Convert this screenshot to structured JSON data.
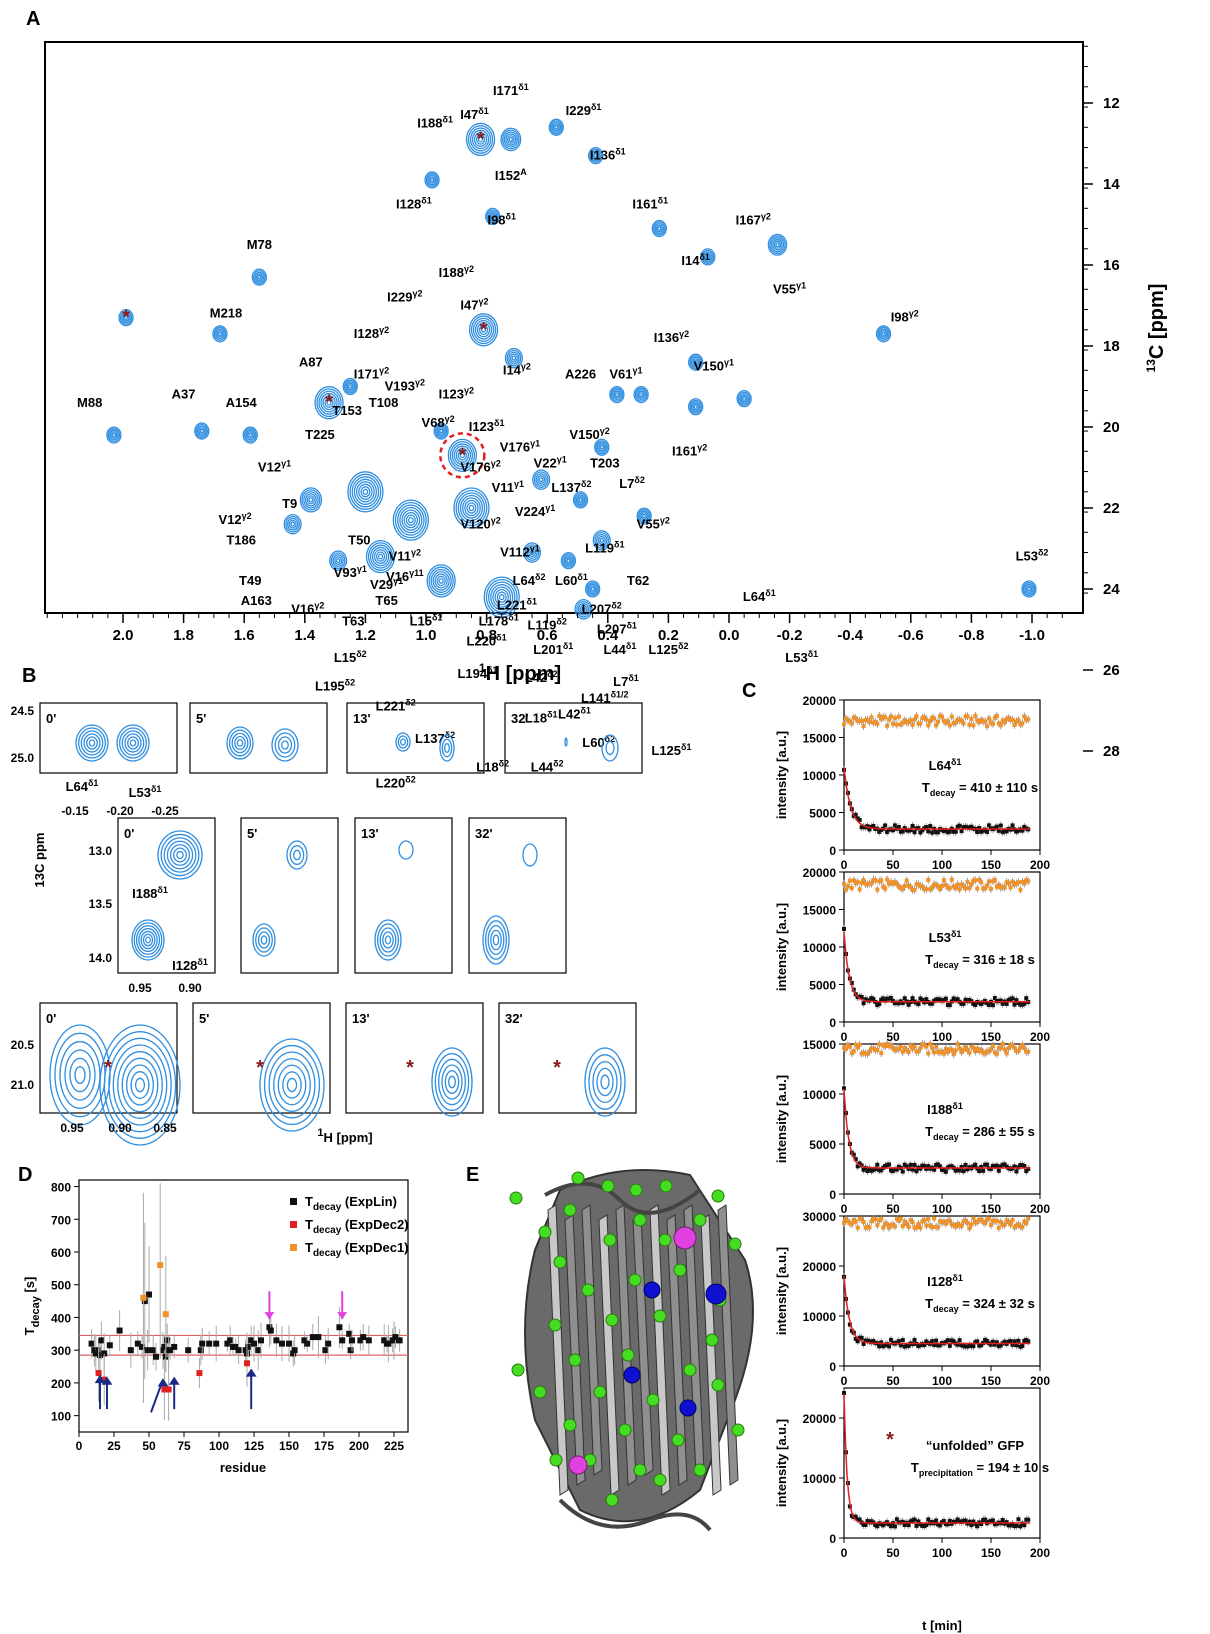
{
  "panels": {
    "a": "A",
    "b": "B",
    "c": "C",
    "d": "D",
    "e": "E"
  },
  "colors": {
    "contour": "#2f8ee0",
    "star": "#8b1a1a",
    "orange": "#f0922b",
    "red_fit": "#e02020",
    "black": "#111111",
    "magenta": "#e040e0",
    "navy": "#1a2a8a",
    "green": "#44dd22",
    "protein": "#555555"
  },
  "panelA": {
    "xlabel_pre": "1",
    "xlabel_main": "H [ppm]",
    "ylabel_pre": "13",
    "ylabel_main": "C [ppm]",
    "xticks": [
      "2.0",
      "1.8",
      "1.6",
      "1.4",
      "1.2",
      "1.0",
      "0.8",
      "0.6",
      "0.4",
      "0.2",
      "0.0",
      "-0.2",
      "-0.4",
      "-0.6",
      "-0.8",
      "-1.0"
    ],
    "yticks": [
      "12",
      "14",
      "16",
      "18",
      "20",
      "22",
      "24",
      "26",
      "28"
    ],
    "peaks": [
      {
        "x": 1.99,
        "y": 17.3,
        "s": 1,
        "star": true
      },
      {
        "x": 1.55,
        "y": 16.3,
        "s": 1
      },
      {
        "x": 1.68,
        "y": 17.7,
        "s": 1
      },
      {
        "x": 2.03,
        "y": 20.2,
        "s": 1
      },
      {
        "x": 1.74,
        "y": 20.1,
        "s": 1
      },
      {
        "x": 1.58,
        "y": 20.2,
        "s": 1
      },
      {
        "x": 1.32,
        "y": 19.4,
        "s": 2,
        "star": true
      },
      {
        "x": 1.25,
        "y": 19.0,
        "s": 1
      },
      {
        "x": 0.98,
        "y": 13.9,
        "s": 1
      },
      {
        "x": 0.82,
        "y": 12.9,
        "s": 2,
        "star": true
      },
      {
        "x": 0.72,
        "y": 12.9,
        "s": 1.4
      },
      {
        "x": 0.57,
        "y": 12.6,
        "s": 1
      },
      {
        "x": 0.44,
        "y": 13.3,
        "s": 1
      },
      {
        "x": 0.78,
        "y": 14.8,
        "s": 1
      },
      {
        "x": 0.23,
        "y": 15.1,
        "s": 1
      },
      {
        "x": 0.07,
        "y": 15.8,
        "s": 1
      },
      {
        "x": -0.16,
        "y": 15.5,
        "s": 1.3
      },
      {
        "x": -0.51,
        "y": 17.7,
        "s": 1
      },
      {
        "x": 0.81,
        "y": 17.6,
        "s": 2,
        "star": true
      },
      {
        "x": 0.71,
        "y": 18.3,
        "s": 1.2
      },
      {
        "x": 0.37,
        "y": 19.2,
        "s": 1
      },
      {
        "x": 0.29,
        "y": 19.2,
        "s": 1
      },
      {
        "x": 0.11,
        "y": 18.4,
        "s": 1
      },
      {
        "x": 0.11,
        "y": 19.5,
        "s": 1
      },
      {
        "x": -0.05,
        "y": 19.3,
        "s": 1
      },
      {
        "x": 0.42,
        "y": 20.5,
        "s": 1
      },
      {
        "x": 0.88,
        "y": 20.7,
        "s": 2,
        "star": true
      },
      {
        "x": 0.95,
        "y": 20.1,
        "s": 1
      },
      {
        "x": 0.62,
        "y": 21.3,
        "s": 1.2
      },
      {
        "x": 0.49,
        "y": 21.8,
        "s": 1
      },
      {
        "x": 0.28,
        "y": 22.2,
        "s": 1
      },
      {
        "x": 0.42,
        "y": 22.8,
        "s": 1.2
      },
      {
        "x": 0.65,
        "y": 23.1,
        "s": 1.2
      },
      {
        "x": 0.53,
        "y": 23.3,
        "s": 1
      },
      {
        "x": 0.45,
        "y": 24.0,
        "s": 1
      },
      {
        "x": 0.48,
        "y": 24.5,
        "s": 1.2
      },
      {
        "x": 0.23,
        "y": 25.0,
        "s": 1
      },
      {
        "x": -0.17,
        "y": 24.9,
        "s": 1.3
      },
      {
        "x": -0.99,
        "y": 24.0,
        "s": 1
      },
      {
        "x": 0.49,
        "y": 25.9,
        "s": 1.4
      },
      {
        "x": 0.54,
        "y": 26.7,
        "s": 1.2
      },
      {
        "x": 0.23,
        "y": 27.6,
        "s": 1
      },
      {
        "x": 0.69,
        "y": 27.9,
        "s": 1.2
      },
      {
        "x": 0.93,
        "y": 28.3,
        "s": 1
      },
      {
        "x": 0.97,
        "y": 25.8,
        "s": 1.2
      },
      {
        "x": 0.78,
        "y": 26.0,
        "s": 1.3
      },
      {
        "x": 1.09,
        "y": 25.8,
        "s": 1
      },
      {
        "x": 1.2,
        "y": 21.6,
        "s": 2.5
      },
      {
        "x": 1.05,
        "y": 22.3,
        "s": 2.5
      },
      {
        "x": 0.85,
        "y": 22.0,
        "s": 2.5
      },
      {
        "x": 1.15,
        "y": 23.2,
        "s": 2
      },
      {
        "x": 0.95,
        "y": 23.8,
        "s": 2
      },
      {
        "x": 0.75,
        "y": 24.2,
        "s": 2.5
      },
      {
        "x": 1.38,
        "y": 21.8,
        "s": 1.5
      },
      {
        "x": 1.44,
        "y": 22.4,
        "s": 1.2
      },
      {
        "x": 1.29,
        "y": 23.3,
        "s": 1.2
      },
      {
        "x": 0.98,
        "y": 24.8,
        "s": 2
      },
      {
        "x": 0.6,
        "y": 25.1,
        "s": 2
      },
      {
        "x": 1.35,
        "y": 25.1,
        "s": 1.6
      },
      {
        "x": 1.55,
        "y": 26.5,
        "s": 2
      },
      {
        "x": 1.9,
        "y": 27.8,
        "s": 1.3
      },
      {
        "x": 1.6,
        "y": 28.7,
        "s": 2
      },
      {
        "x": 2.1,
        "y": 28.7,
        "s": 1
      }
    ],
    "labels": [
      {
        "t": "I188δ1",
        "x": 0.97,
        "y": 12.6
      },
      {
        "t": "I47δ1",
        "x": 0.84,
        "y": 12.4
      },
      {
        "t": "I171δ1",
        "x": 0.72,
        "y": 11.8
      },
      {
        "t": "I229δ1",
        "x": 0.48,
        "y": 12.3
      },
      {
        "t": "I136δ1",
        "x": 0.4,
        "y": 13.4
      },
      {
        "t": "I152A",
        "x": 0.72,
        "y": 13.9
      },
      {
        "t": "I128δ1",
        "x": 1.04,
        "y": 14.6
      },
      {
        "t": "I98δ1",
        "x": 0.75,
        "y": 15.0
      },
      {
        "t": "I161δ1",
        "x": 0.26,
        "y": 14.6
      },
      {
        "t": "I14δ1",
        "x": 0.11,
        "y": 16.0
      },
      {
        "t": "I167γ2",
        "x": -0.08,
        "y": 15.0
      },
      {
        "t": "V55γ1",
        "x": -0.2,
        "y": 16.7
      },
      {
        "t": "M78",
        "x": 1.55,
        "y": 15.6
      },
      {
        "t": "M218",
        "x": 1.66,
        "y": 17.3
      },
      {
        "t": "I98γ2",
        "x": -0.58,
        "y": 17.4
      },
      {
        "t": "I229γ2",
        "x": 1.07,
        "y": 16.9
      },
      {
        "t": "I188γ2",
        "x": 0.9,
        "y": 16.3
      },
      {
        "t": "I47γ2",
        "x": 0.84,
        "y": 17.1
      },
      {
        "t": "I128γ2",
        "x": 1.18,
        "y": 17.8
      },
      {
        "t": "I136γ2",
        "x": 0.19,
        "y": 17.9
      },
      {
        "t": "V150γ1",
        "x": 0.05,
        "y": 18.6
      },
      {
        "t": "A87",
        "x": 1.38,
        "y": 18.5
      },
      {
        "t": "I14γ2",
        "x": 0.7,
        "y": 18.7
      },
      {
        "t": "I171γ2",
        "x": 1.18,
        "y": 18.8
      },
      {
        "t": "V193γ2",
        "x": 1.07,
        "y": 19.1
      },
      {
        "t": "I123γ2",
        "x": 0.9,
        "y": 19.3
      },
      {
        "t": "A226",
        "x": 0.49,
        "y": 18.8
      },
      {
        "t": "V61γ1",
        "x": 0.34,
        "y": 18.8
      },
      {
        "t": "M88",
        "x": 2.11,
        "y": 19.5
      },
      {
        "t": "A37",
        "x": 1.8,
        "y": 19.3
      },
      {
        "t": "A154",
        "x": 1.61,
        "y": 19.5
      },
      {
        "t": "T153",
        "x": 1.26,
        "y": 19.7
      },
      {
        "t": "T108",
        "x": 1.14,
        "y": 19.5
      },
      {
        "t": "V68γ2",
        "x": 0.96,
        "y": 20.0
      },
      {
        "t": "I123δ1",
        "x": 0.8,
        "y": 20.1
      },
      {
        "t": "I161γ2",
        "x": 0.13,
        "y": 20.7
      },
      {
        "t": "T225",
        "x": 1.35,
        "y": 20.3
      },
      {
        "t": "V150γ2",
        "x": 0.46,
        "y": 20.3
      },
      {
        "t": "V176γ1",
        "x": 0.69,
        "y": 20.6
      },
      {
        "t": "V176γ2",
        "x": 0.82,
        "y": 21.1
      },
      {
        "t": "V22γ1",
        "x": 0.59,
        "y": 21.0
      },
      {
        "t": "T203",
        "x": 0.41,
        "y": 21.0
      },
      {
        "t": "V12γ1",
        "x": 1.5,
        "y": 21.1
      },
      {
        "t": "V11γ1",
        "x": 0.73,
        "y": 21.6
      },
      {
        "t": "L137δ2",
        "x": 0.52,
        "y": 21.6
      },
      {
        "t": "L7δ2",
        "x": 0.32,
        "y": 21.5
      },
      {
        "t": "T9",
        "x": 1.45,
        "y": 22.0
      },
      {
        "t": "V224γ1",
        "x": 0.64,
        "y": 22.2
      },
      {
        "t": "V120γ2",
        "x": 0.82,
        "y": 22.5
      },
      {
        "t": "V12γ2",
        "x": 1.63,
        "y": 22.4
      },
      {
        "t": "V55γ2",
        "x": 0.25,
        "y": 22.5
      },
      {
        "t": "T186",
        "x": 1.61,
        "y": 22.9
      },
      {
        "t": "T50",
        "x": 1.22,
        "y": 22.9
      },
      {
        "t": "V112γ1",
        "x": 0.69,
        "y": 23.2
      },
      {
        "t": "L119δ1",
        "x": 0.41,
        "y": 23.1
      },
      {
        "t": "V11γ2",
        "x": 1.07,
        "y": 23.3
      },
      {
        "t": "V16γ11",
        "x": 1.07,
        "y": 23.8
      },
      {
        "t": "V93γ1",
        "x": 1.25,
        "y": 23.7
      },
      {
        "t": "L64δ2",
        "x": 0.66,
        "y": 23.9
      },
      {
        "t": "L60δ1",
        "x": 0.52,
        "y": 23.9
      },
      {
        "t": "T62",
        "x": 0.3,
        "y": 23.9
      },
      {
        "t": "T49",
        "x": 1.58,
        "y": 23.9
      },
      {
        "t": "V29γ1",
        "x": 1.13,
        "y": 24.0
      },
      {
        "t": "L221δ1",
        "x": 0.7,
        "y": 24.5
      },
      {
        "t": "L207δ2",
        "x": 0.42,
        "y": 24.6
      },
      {
        "t": "A163",
        "x": 1.56,
        "y": 24.4
      },
      {
        "t": "V16γ2",
        "x": 1.39,
        "y": 24.6
      },
      {
        "t": "T65",
        "x": 1.13,
        "y": 24.4
      },
      {
        "t": "L178δ1",
        "x": 0.76,
        "y": 24.9
      },
      {
        "t": "L64δ1",
        "x": -0.1,
        "y": 24.3
      },
      {
        "t": "T63",
        "x": 1.24,
        "y": 24.9
      },
      {
        "t": "L15δ1",
        "x": 1.0,
        "y": 24.9
      },
      {
        "t": "L119δ2",
        "x": 0.6,
        "y": 25.0
      },
      {
        "t": "L207δ1",
        "x": 0.37,
        "y": 25.1
      },
      {
        "t": "L220δ1",
        "x": 0.8,
        "y": 25.4
      },
      {
        "t": "L201δ1",
        "x": 0.58,
        "y": 25.6
      },
      {
        "t": "L44δ1",
        "x": 0.36,
        "y": 25.6
      },
      {
        "t": "L125δ2",
        "x": 0.2,
        "y": 25.6
      },
      {
        "t": "L53δ1",
        "x": -0.24,
        "y": 25.8
      },
      {
        "t": "L15δ2",
        "x": 1.25,
        "y": 25.8
      },
      {
        "t": "L194δ1",
        "x": 0.83,
        "y": 26.2
      },
      {
        "t": "L42δ2",
        "x": 0.62,
        "y": 26.3
      },
      {
        "t": "L7δ1",
        "x": 0.34,
        "y": 26.4
      },
      {
        "t": "L195δ2",
        "x": 1.3,
        "y": 26.5
      },
      {
        "t": "L141δ1/2",
        "x": 0.41,
        "y": 26.8
      },
      {
        "t": "L221δ2",
        "x": 1.1,
        "y": 27.0
      },
      {
        "t": "L18δ1",
        "x": 0.62,
        "y": 27.3
      },
      {
        "t": "L42δ1",
        "x": 0.51,
        "y": 27.2
      },
      {
        "t": "L137δ2",
        "x": 0.97,
        "y": 27.8
      },
      {
        "t": "L60δ2",
        "x": 0.43,
        "y": 27.9
      },
      {
        "t": "L125δ1",
        "x": 0.19,
        "y": 28.1
      },
      {
        "t": "L18δ2",
        "x": 0.78,
        "y": 28.5
      },
      {
        "t": "L44δ2",
        "x": 0.6,
        "y": 28.5
      },
      {
        "t": "L220δ2",
        "x": 1.1,
        "y": 28.9
      },
      {
        "t": "L53δ2",
        "x": -1.0,
        "y": 23.3
      }
    ]
  },
  "panelB": {
    "ylabel": "13C ppm",
    "xlabel_pre": "1",
    "xlabel_main": "H [ppm]",
    "row1": {
      "times": [
        "0'",
        "5'",
        "13'",
        "32'"
      ],
      "yticks": [
        "24.5",
        "25.0"
      ],
      "xticks": [
        "-0.15",
        "-0.20",
        "-0.25"
      ],
      "lab1": "L64δ1",
      "lab2": "L53δ1"
    },
    "row2": {
      "times": [
        "0'",
        "5'",
        "13'",
        "32'"
      ],
      "yticks": [
        "13.0",
        "13.5",
        "14.0"
      ],
      "xticks": [
        "0.95",
        "0.90"
      ],
      "lab1": "I188δ1",
      "lab2": "I128δ1"
    },
    "row3": {
      "times": [
        "0'",
        "5'",
        "13'",
        "32'"
      ],
      "yticks": [
        "20.5",
        "21.0"
      ],
      "xticks": [
        "0.95",
        "0.90",
        "0.85"
      ]
    }
  },
  "panelC": {
    "ylabel": "intensity [a.u.]",
    "xlabel": "t [min]",
    "xticks": [
      "0",
      "50",
      "100",
      "150",
      "200"
    ],
    "plots": [
      {
        "name": "L64δ1",
        "t": "Tdecay = 410 ± 110 s",
        "yticks": [
          "0",
          "5000",
          "10000",
          "15000",
          "20000"
        ],
        "ymax": 20000,
        "flat": 17200,
        "start": 11000,
        "end": 2800,
        "tau": 6.8,
        "ts": "decay"
      },
      {
        "name": "L53δ1",
        "t": "Tdecay = 316 ± 18 s",
        "yticks": [
          "0",
          "5000",
          "10000",
          "15000",
          "20000"
        ],
        "ymax": 20000,
        "flat": 18300,
        "start": 12000,
        "end": 2700,
        "tau": 5.3,
        "ts": "decay"
      },
      {
        "name": "I188δ1",
        "t": "Tdecay = 286 ± 55 s",
        "yticks": [
          "0",
          "5000",
          "10000",
          "15000"
        ],
        "ymax": 15000,
        "flat": 14500,
        "start": 10500,
        "end": 2600,
        "tau": 4.8,
        "ts": "decay"
      },
      {
        "name": "I128δ1",
        "t": "Tdecay = 324 ± 32 s",
        "yticks": [
          "0",
          "10000",
          "20000",
          "30000"
        ],
        "ymax": 30000,
        "flat": 28500,
        "start": 18000,
        "end": 4500,
        "tau": 5.4,
        "ts": "decay"
      },
      {
        "name": "“unfolded” GFP",
        "t": "Tprecipitation = 194 ± 10 s",
        "yticks": [
          "0",
          "10000",
          "20000"
        ],
        "ymax": 25000,
        "flat": null,
        "start": 24000,
        "end": 2500,
        "tau": 3.2,
        "ts": "precipitation"
      }
    ]
  },
  "panelD": {
    "ylabel": "Tdecay [s]",
    "xlabel": "residue",
    "xticks": [
      "0",
      "25",
      "50",
      "75",
      "100",
      "125",
      "150",
      "175",
      "200",
      "225"
    ],
    "yticks": [
      "100",
      "200",
      "300",
      "400",
      "500",
      "600",
      "700",
      "800"
    ],
    "legend": [
      "Tdecay (ExpLin)",
      "Tdecay (ExpDec2)",
      "Tdecay (ExpDec1)"
    ],
    "black": [
      [
        9,
        320
      ],
      [
        11,
        300
      ],
      [
        12,
        290
      ],
      [
        14,
        300
      ],
      [
        15,
        285
      ],
      [
        16,
        330
      ],
      [
        18,
        290
      ],
      [
        22,
        315
      ],
      [
        29,
        360
      ],
      [
        37,
        300
      ],
      [
        42,
        320
      ],
      [
        45,
        310
      ],
      [
        47,
        450
      ],
      [
        49,
        300
      ],
      [
        50,
        470
      ],
      [
        53,
        300
      ],
      [
        55,
        280
      ],
      [
        60,
        300
      ],
      [
        61,
        310
      ],
      [
        62,
        280
      ],
      [
        63,
        330
      ],
      [
        64,
        300
      ],
      [
        65,
        300
      ],
      [
        68,
        310
      ],
      [
        78,
        300
      ],
      [
        87,
        300
      ],
      [
        88,
        320
      ],
      [
        93,
        320
      ],
      [
        98,
        320
      ],
      [
        106,
        320
      ],
      [
        108,
        330
      ],
      [
        110,
        310
      ],
      [
        112,
        310
      ],
      [
        114,
        300
      ],
      [
        119,
        300
      ],
      [
        120,
        290
      ],
      [
        121,
        310
      ],
      [
        123,
        330
      ],
      [
        125,
        320
      ],
      [
        128,
        300
      ],
      [
        130,
        330
      ],
      [
        136,
        370
      ],
      [
        137,
        360
      ],
      [
        141,
        330
      ],
      [
        145,
        320
      ],
      [
        150,
        320
      ],
      [
        153,
        290
      ],
      [
        154,
        300
      ],
      [
        161,
        330
      ],
      [
        163,
        320
      ],
      [
        167,
        340
      ],
      [
        171,
        340
      ],
      [
        176,
        300
      ],
      [
        178,
        320
      ],
      [
        186,
        370
      ],
      [
        188,
        330
      ],
      [
        193,
        350
      ],
      [
        194,
        300
      ],
      [
        195,
        330
      ],
      [
        201,
        330
      ],
      [
        203,
        340
      ],
      [
        207,
        330
      ],
      [
        218,
        330
      ],
      [
        220,
        320
      ],
      [
        221,
        320
      ],
      [
        224,
        330
      ],
      [
        225,
        330
      ],
      [
        226,
        340
      ],
      [
        229,
        330
      ]
    ],
    "red": [
      [
        14,
        230
      ],
      [
        18,
        210
      ],
      [
        61,
        180
      ],
      [
        64,
        180
      ],
      [
        86,
        230
      ],
      [
        120,
        260
      ]
    ],
    "orange": [
      [
        46,
        460
      ],
      [
        58,
        560
      ],
      [
        62,
        410
      ]
    ],
    "arrows_navy": [
      15,
      20,
      60,
      60,
      123
    ],
    "arrows_magenta": [
      136,
      188
    ],
    "hlines": [
      345,
      285
    ]
  }
}
